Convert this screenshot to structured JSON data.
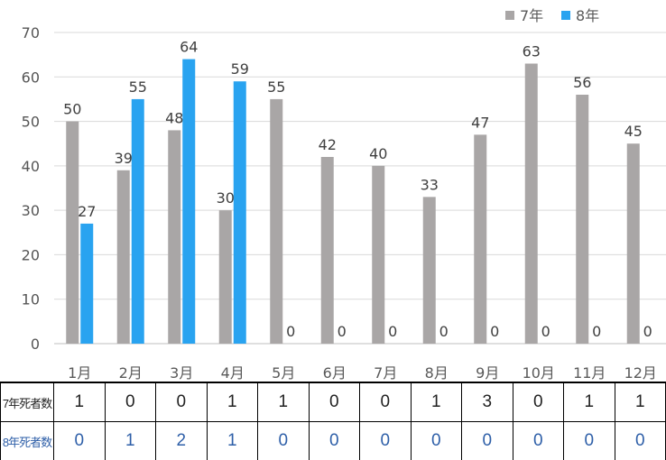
{
  "chart_data": {
    "type": "bar",
    "categories": [
      "1月",
      "2月",
      "3月",
      "4月",
      "5月",
      "6月",
      "7月",
      "8月",
      "9月",
      "10月",
      "11月",
      "12月"
    ],
    "series": [
      {
        "name": "7年",
        "color": "#a9a6a6",
        "values": [
          50,
          39,
          48,
          30,
          55,
          42,
          40,
          33,
          47,
          63,
          56,
          45
        ]
      },
      {
        "name": "8年",
        "color": "#29a3f0",
        "values": [
          27,
          55,
          64,
          59,
          0,
          0,
          0,
          0,
          0,
          0,
          0,
          0
        ]
      }
    ],
    "ylim": [
      0,
      70
    ],
    "yticks": [
      0,
      10,
      20,
      30,
      40,
      50,
      60,
      70
    ],
    "grid": true,
    "legend": "top-right"
  },
  "table": {
    "rows": [
      {
        "label": "7年死者数",
        "values": [
          "1",
          "0",
          "0",
          "1",
          "1",
          "0",
          "0",
          "1",
          "3",
          "0",
          "1",
          "1"
        ]
      },
      {
        "label": "8年死者数",
        "values": [
          "0",
          "1",
          "2",
          "1",
          "0",
          "0",
          "0",
          "0",
          "0",
          "0",
          "0",
          "0"
        ]
      }
    ]
  }
}
